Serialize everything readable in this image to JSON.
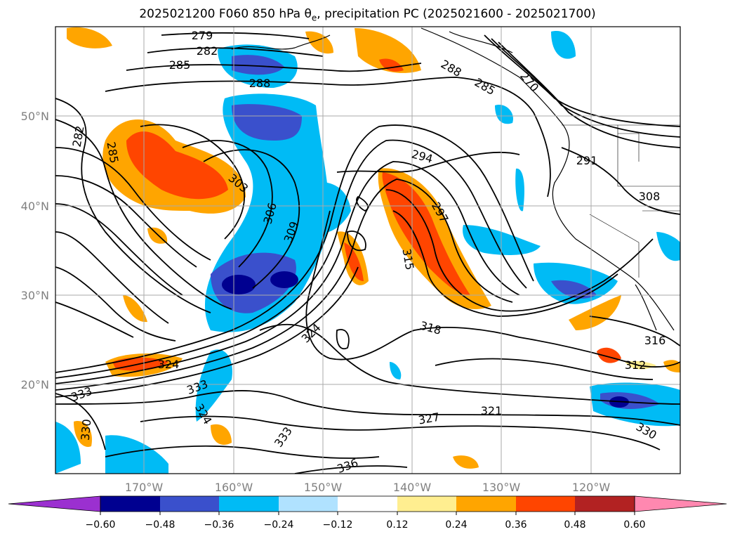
{
  "title": {
    "prefix": "2025021200 F060 850 hPa ",
    "symbol": "θ",
    "symbol_sub": "e",
    "suffix": ", precipitation PC (2025021600 - 2025021700)"
  },
  "map": {
    "lon_labels": [
      "170°W",
      "160°W",
      "150°W",
      "140°W",
      "130°W",
      "120°W"
    ],
    "lat_labels": [
      "50°N",
      "40°N",
      "30°N",
      "20°N"
    ],
    "contour_labels": [
      "279",
      "282",
      "285",
      "288",
      "282",
      "285",
      "303",
      "306",
      "309",
      "294",
      "297",
      "315",
      "291",
      "308",
      "324",
      "318",
      "324",
      "333",
      "324",
      "330",
      "333",
      "333",
      "336",
      "327",
      "321",
      "330",
      "312",
      "316",
      "288",
      "285",
      "270"
    ]
  },
  "colorbar": {
    "ticks": [
      "−0.60",
      "−0.48",
      "−0.36",
      "−0.24",
      "−0.12",
      "0.12",
      "0.24",
      "0.36",
      "0.48",
      "0.60"
    ],
    "colors": [
      "#9b30d0",
      "#000090",
      "#3a50cc",
      "#00bbf5",
      "#b0e2ff",
      "#ffffff",
      "#ffee90",
      "#ffa500",
      "#ff4500",
      "#b22222",
      "#ff88b0"
    ]
  }
}
